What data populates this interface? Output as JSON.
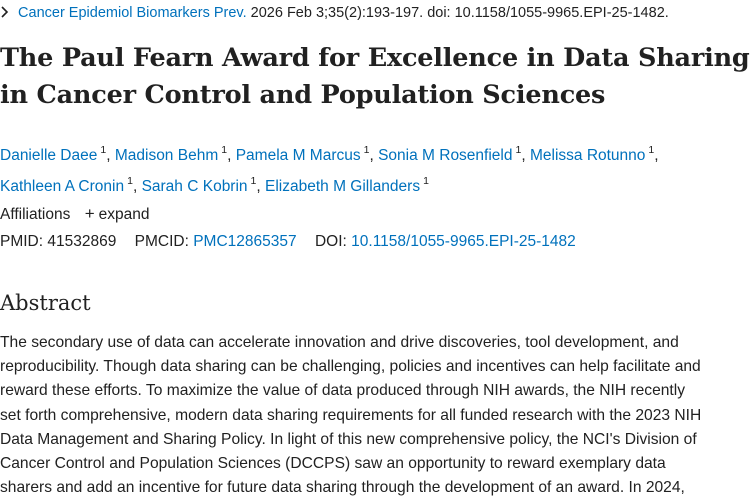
{
  "citation": {
    "journal": "Cancer Epidemiol Biomarkers Prev.",
    "rest": " 2026 Feb 3;35(2):193-197. doi: 10.1158/1055-9965.EPI-25-1482."
  },
  "title_lines": [
    "The Paul Fearn Award for Excellence in Data Sharing",
    "in Cancer Control and Population Sciences"
  ],
  "authors": [
    {
      "name": "Danielle Daee",
      "sup": "1"
    },
    {
      "name": "Madison Behm",
      "sup": "1"
    },
    {
      "name": "Pamela M Marcus",
      "sup": "1"
    },
    {
      "name": "Sonia M Rosenfield",
      "sup": "1"
    },
    {
      "name": "Melissa Rotunno",
      "sup": "1"
    },
    {
      "name": "Kathleen A Cronin",
      "sup": "1"
    },
    {
      "name": "Sarah C Kobrin",
      "sup": "1"
    },
    {
      "name": "Elizabeth M Gillanders",
      "sup": "1"
    }
  ],
  "affiliations": {
    "label": "Affiliations",
    "expand_label": "expand"
  },
  "ids": {
    "pmid_label": "PMID:",
    "pmid": "41532869",
    "pmcid_label": "PMCID:",
    "pmcid": "PMC12865357",
    "doi_label": "DOI:",
    "doi": "10.1158/1055-9965.EPI-25-1482"
  },
  "abstract": {
    "heading": "Abstract",
    "lines": [
      "The secondary use of data can accelerate innovation and drive discoveries, tool development, and",
      "reproducibility. Though data sharing can be challenging, policies and incentives can help facilitate and",
      "reward these efforts. To maximize the value of data produced through NIH awards, the NIH recently",
      "set forth comprehensive, modern data sharing requirements for all funded research with the 2023 NIH",
      "Data Management and Sharing Policy. In light of this new comprehensive policy, the NCI's Division of",
      "Cancer Control and Population Sciences (DCCPS) saw an opportunity to reward exemplary data",
      "sharers and add an incentive for future data sharing through the development of an award. In 2024,"
    ]
  }
}
